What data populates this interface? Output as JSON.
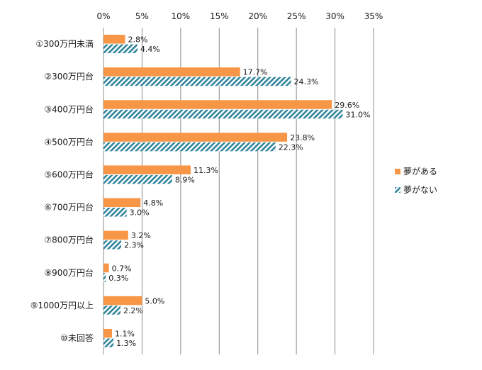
{
  "chart_data": {
    "type": "bar",
    "orientation": "horizontal",
    "categories": [
      "①300万円未満",
      "②300万円台",
      "③400万円台",
      "④500万円台",
      "⑤600万円台",
      "⑥700万円台",
      "⑦800万円台",
      "⑧900万円台",
      "⑨1000万円以上",
      "⑩未回答"
    ],
    "series": [
      {
        "name": "夢がある",
        "values": [
          2.8,
          17.7,
          29.6,
          23.8,
          11.3,
          4.8,
          3.2,
          0.7,
          5.0,
          1.1
        ],
        "labels": [
          "2.8%",
          "17.7%",
          "29.6%",
          "23.8%",
          "11.3%",
          "4.8%",
          "3.2%",
          "0.7%",
          "5.0%",
          "1.1%"
        ],
        "color": "#F79646",
        "fill": "solid"
      },
      {
        "name": "夢がない",
        "values": [
          4.4,
          24.3,
          31.0,
          22.3,
          8.9,
          3.0,
          2.3,
          0.3,
          2.2,
          1.3
        ],
        "labels": [
          "4.4%",
          "24.3%",
          "31.0%",
          "22.3%",
          "8.9%",
          "3.0%",
          "2.3%",
          "0.3%",
          "2.2%",
          "1.3%"
        ],
        "color": "#31859C",
        "fill": "diagonal-hatch"
      }
    ],
    "x_ticks": [
      0,
      5,
      10,
      15,
      20,
      25,
      30,
      35
    ],
    "x_tick_labels": [
      "0%",
      "5%",
      "10%",
      "15%",
      "20%",
      "25%",
      "30%",
      "35%"
    ],
    "xlim": [
      0,
      35
    ],
    "x_axis_position": "top",
    "grid": "vertical",
    "legend_position": "right"
  }
}
